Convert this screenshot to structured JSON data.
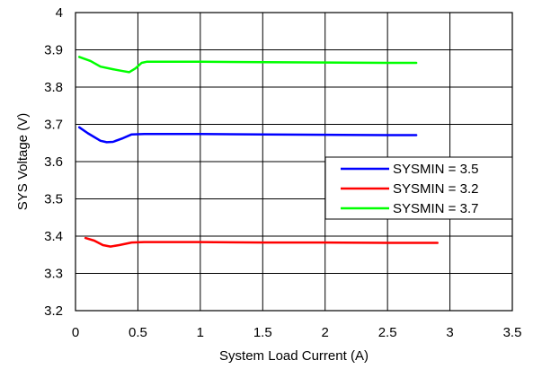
{
  "chart_data": {
    "type": "line",
    "title": "",
    "xlabel": "System Load Current (A)",
    "ylabel": "SYS Voltage (V)",
    "xlim": [
      0,
      3.5
    ],
    "ylim": [
      3.2,
      4.0
    ],
    "xticks": [
      0,
      0.5,
      1,
      1.5,
      2,
      2.5,
      3,
      3.5
    ],
    "xtick_labels": [
      "0",
      "0.5",
      "1",
      "1.5",
      "2",
      "2.5",
      "3",
      "3.5"
    ],
    "yticks": [
      3.2,
      3.3,
      3.4,
      3.5,
      3.6,
      3.7,
      3.8,
      3.9,
      4.0
    ],
    "ytick_labels": [
      "3.2",
      "3.3",
      "3.4",
      "3.5",
      "3.6",
      "3.7",
      "3.8",
      "3.9",
      "4"
    ],
    "grid": true,
    "legend_position": "center-right",
    "series": [
      {
        "name": "SYSMIN = 3.5",
        "color": "#0000ff",
        "points": [
          [
            0.03,
            3.692
          ],
          [
            0.1,
            3.676
          ],
          [
            0.2,
            3.656
          ],
          [
            0.25,
            3.652
          ],
          [
            0.3,
            3.653
          ],
          [
            0.38,
            3.663
          ],
          [
            0.45,
            3.673
          ],
          [
            0.55,
            3.674
          ],
          [
            1.0,
            3.674
          ],
          [
            1.5,
            3.673
          ],
          [
            2.0,
            3.672
          ],
          [
            2.5,
            3.671
          ],
          [
            2.73,
            3.671
          ]
        ]
      },
      {
        "name": "SYSMIN = 3.2",
        "color": "#ff0000",
        "points": [
          [
            0.08,
            3.395
          ],
          [
            0.15,
            3.388
          ],
          [
            0.22,
            3.376
          ],
          [
            0.28,
            3.372
          ],
          [
            0.35,
            3.376
          ],
          [
            0.45,
            3.383
          ],
          [
            0.55,
            3.384
          ],
          [
            1.0,
            3.384
          ],
          [
            1.5,
            3.383
          ],
          [
            2.0,
            3.383
          ],
          [
            2.5,
            3.382
          ],
          [
            2.9,
            3.382
          ]
        ]
      },
      {
        "name": "SYSMIN = 3.7",
        "color": "#00ff00",
        "points": [
          [
            0.03,
            3.881
          ],
          [
            0.12,
            3.87
          ],
          [
            0.2,
            3.855
          ],
          [
            0.3,
            3.848
          ],
          [
            0.38,
            3.843
          ],
          [
            0.43,
            3.84
          ],
          [
            0.48,
            3.85
          ],
          [
            0.53,
            3.865
          ],
          [
            0.57,
            3.868
          ],
          [
            1.0,
            3.868
          ],
          [
            1.5,
            3.867
          ],
          [
            2.0,
            3.866
          ],
          [
            2.5,
            3.865
          ],
          [
            2.73,
            3.865
          ]
        ]
      }
    ]
  }
}
